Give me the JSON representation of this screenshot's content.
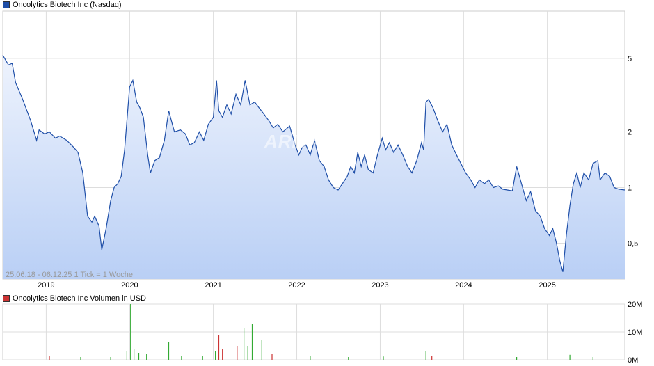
{
  "price_chart": {
    "legend": "Oncolytics Biotech Inc (Nasdaq)",
    "range_note": "25.06.18 - 06.12.25    1 Tick = 1 Woche",
    "watermark": "ARIVA.DE",
    "line_color": "#1f4fa8",
    "fill_top_color": "#eef3fd",
    "fill_bottom_color": "#b9cff5",
    "legend_color": "#1f4fa8"
  },
  "volume_chart": {
    "legend": "Oncolytics Biotech Inc Volumen in USD",
    "legend_color": "#cc3333"
  },
  "chart_data": [
    {
      "type": "line",
      "title": "Oncolytics Biotech Inc (Nasdaq)",
      "y_scale": "log",
      "ylim": [
        0.32,
        9.0
      ],
      "xlim": [
        "2018-06-25",
        "2025-12-06"
      ],
      "x_tick_labels": [
        "2019",
        "2020",
        "2021",
        "2022",
        "2023",
        "2024",
        "2025"
      ],
      "y_tick_labels": [
        {
          "label": "5",
          "value": 5
        },
        {
          "label": "2",
          "value": 2
        },
        {
          "label": "1",
          "value": 1
        },
        {
          "label": "0,5",
          "value": 0.5
        }
      ],
      "grid": true,
      "series": [
        {
          "points": [
            [
              "2018-06-25",
              5.2
            ],
            [
              "2018-07-20",
              4.6
            ],
            [
              "2018-08-05",
              4.7
            ],
            [
              "2018-08-20",
              3.7
            ],
            [
              "2018-09-20",
              3.0
            ],
            [
              "2018-10-25",
              2.3
            ],
            [
              "2018-11-20",
              1.8
            ],
            [
              "2018-12-01",
              2.05
            ],
            [
              "2018-12-25",
              1.95
            ],
            [
              "2019-01-15",
              2.0
            ],
            [
              "2019-02-10",
              1.85
            ],
            [
              "2019-03-01",
              1.9
            ],
            [
              "2019-04-01",
              1.8
            ],
            [
              "2019-05-01",
              1.65
            ],
            [
              "2019-05-20",
              1.55
            ],
            [
              "2019-06-10",
              1.2
            ],
            [
              "2019-07-01",
              0.7
            ],
            [
              "2019-07-20",
              0.65
            ],
            [
              "2019-08-01",
              0.7
            ],
            [
              "2019-08-20",
              0.62
            ],
            [
              "2019-09-01",
              0.46
            ],
            [
              "2019-09-20",
              0.6
            ],
            [
              "2019-10-10",
              0.85
            ],
            [
              "2019-10-25",
              1.0
            ],
            [
              "2019-11-10",
              1.05
            ],
            [
              "2019-11-25",
              1.15
            ],
            [
              "2019-12-10",
              1.6
            ],
            [
              "2020-01-01",
              3.5
            ],
            [
              "2020-01-15",
              3.8
            ],
            [
              "2020-02-01",
              2.9
            ],
            [
              "2020-02-15",
              2.7
            ],
            [
              "2020-03-01",
              2.4
            ],
            [
              "2020-03-20",
              1.5
            ],
            [
              "2020-04-01",
              1.2
            ],
            [
              "2020-04-20",
              1.4
            ],
            [
              "2020-05-10",
              1.45
            ],
            [
              "2020-06-01",
              1.8
            ],
            [
              "2020-06-20",
              2.6
            ],
            [
              "2020-07-15",
              2.0
            ],
            [
              "2020-08-10",
              2.05
            ],
            [
              "2020-09-01",
              1.95
            ],
            [
              "2020-09-20",
              1.7
            ],
            [
              "2020-10-10",
              1.75
            ],
            [
              "2020-11-01",
              2.0
            ],
            [
              "2020-11-20",
              1.8
            ],
            [
              "2020-12-10",
              2.2
            ],
            [
              "2021-01-01",
              2.4
            ],
            [
              "2021-01-15",
              3.8
            ],
            [
              "2021-01-25",
              2.6
            ],
            [
              "2021-02-10",
              2.4
            ],
            [
              "2021-03-01",
              2.8
            ],
            [
              "2021-03-20",
              2.5
            ],
            [
              "2021-04-10",
              3.2
            ],
            [
              "2021-05-01",
              2.8
            ],
            [
              "2021-05-20",
              3.8
            ],
            [
              "2021-06-10",
              2.8
            ],
            [
              "2021-07-01",
              2.9
            ],
            [
              "2021-07-20",
              2.7
            ],
            [
              "2021-08-10",
              2.5
            ],
            [
              "2021-09-01",
              2.3
            ],
            [
              "2021-09-20",
              2.1
            ],
            [
              "2021-10-10",
              2.2
            ],
            [
              "2021-11-01",
              2.0
            ],
            [
              "2021-12-01",
              2.15
            ],
            [
              "2021-12-25",
              1.7
            ],
            [
              "2022-01-10",
              1.5
            ],
            [
              "2022-01-25",
              1.65
            ],
            [
              "2022-02-10",
              1.7
            ],
            [
              "2022-03-01",
              1.5
            ],
            [
              "2022-03-20",
              1.8
            ],
            [
              "2022-04-10",
              1.4
            ],
            [
              "2022-05-01",
              1.3
            ],
            [
              "2022-05-20",
              1.1
            ],
            [
              "2022-06-10",
              1.0
            ],
            [
              "2022-07-01",
              0.97
            ],
            [
              "2022-07-20",
              1.05
            ],
            [
              "2022-08-10",
              1.15
            ],
            [
              "2022-08-25",
              1.3
            ],
            [
              "2022-09-10",
              1.2
            ],
            [
              "2022-09-25",
              1.55
            ],
            [
              "2022-10-10",
              1.3
            ],
            [
              "2022-10-25",
              1.5
            ],
            [
              "2022-11-10",
              1.25
            ],
            [
              "2022-12-01",
              1.2
            ],
            [
              "2022-12-20",
              1.5
            ],
            [
              "2023-01-10",
              1.85
            ],
            [
              "2023-01-25",
              1.6
            ],
            [
              "2023-02-10",
              1.75
            ],
            [
              "2023-03-01",
              1.55
            ],
            [
              "2023-03-20",
              1.7
            ],
            [
              "2023-04-10",
              1.5
            ],
            [
              "2023-05-01",
              1.3
            ],
            [
              "2023-05-20",
              1.2
            ],
            [
              "2023-06-10",
              1.4
            ],
            [
              "2023-07-01",
              1.75
            ],
            [
              "2023-07-10",
              1.6
            ],
            [
              "2023-07-20",
              2.9
            ],
            [
              "2023-08-01",
              3.0
            ],
            [
              "2023-08-20",
              2.7
            ],
            [
              "2023-09-10",
              2.3
            ],
            [
              "2023-10-01",
              2.0
            ],
            [
              "2023-10-20",
              2.2
            ],
            [
              "2023-11-10",
              1.7
            ],
            [
              "2023-12-01",
              1.5
            ],
            [
              "2023-12-20",
              1.35
            ],
            [
              "2024-01-10",
              1.2
            ],
            [
              "2024-02-01",
              1.1
            ],
            [
              "2024-02-20",
              1.0
            ],
            [
              "2024-03-10",
              1.1
            ],
            [
              "2024-04-01",
              1.05
            ],
            [
              "2024-04-20",
              1.1
            ],
            [
              "2024-05-10",
              1.0
            ],
            [
              "2024-06-01",
              1.02
            ],
            [
              "2024-06-20",
              0.98
            ],
            [
              "2024-07-10",
              0.97
            ],
            [
              "2024-08-01",
              0.96
            ],
            [
              "2024-08-20",
              1.3
            ],
            [
              "2024-09-10",
              1.05
            ],
            [
              "2024-10-01",
              0.85
            ],
            [
              "2024-10-20",
              0.95
            ],
            [
              "2024-11-10",
              0.75
            ],
            [
              "2024-12-01",
              0.7
            ],
            [
              "2024-12-20",
              0.6
            ],
            [
              "2025-01-10",
              0.55
            ],
            [
              "2025-01-25",
              0.6
            ],
            [
              "2025-02-10",
              0.5
            ],
            [
              "2025-02-25",
              0.4
            ],
            [
              "2025-03-10",
              0.35
            ],
            [
              "2025-03-25",
              0.55
            ],
            [
              "2025-04-10",
              0.8
            ],
            [
              "2025-04-25",
              1.05
            ],
            [
              "2025-05-10",
              1.2
            ],
            [
              "2025-05-25",
              1.0
            ],
            [
              "2025-06-10",
              1.2
            ],
            [
              "2025-07-01",
              1.1
            ],
            [
              "2025-07-20",
              1.35
            ],
            [
              "2025-08-10",
              1.4
            ],
            [
              "2025-08-20",
              1.1
            ],
            [
              "2025-09-10",
              1.2
            ],
            [
              "2025-10-01",
              1.15
            ],
            [
              "2025-10-20",
              1.0
            ],
            [
              "2025-11-10",
              0.98
            ],
            [
              "2025-12-06",
              0.97
            ]
          ]
        }
      ]
    },
    {
      "type": "bar",
      "title": "Oncolytics Biotech Inc Volumen in USD",
      "ylim": [
        0,
        20000000
      ],
      "y_tick_labels": [
        {
          "label": "20M",
          "value": 20000000
        },
        {
          "label": "10M",
          "value": 10000000
        },
        {
          "label": "0M",
          "value": 0
        }
      ],
      "colors": {
        "up": "#33aa33",
        "down": "#cc3333"
      },
      "series": [
        {
          "points": [
            [
              "2019-01-15",
              1500000,
              "down"
            ],
            [
              "2019-06-01",
              1000000,
              "up"
            ],
            [
              "2019-10-10",
              1000000,
              "up"
            ],
            [
              "2019-12-20",
              3000000,
              "up"
            ],
            [
              "2020-01-05",
              20000000,
              "up"
            ],
            [
              "2020-01-20",
              4000000,
              "up"
            ],
            [
              "2020-02-10",
              2500000,
              "up"
            ],
            [
              "2020-03-15",
              2000000,
              "up"
            ],
            [
              "2020-06-20",
              6500000,
              "up"
            ],
            [
              "2020-08-15",
              1500000,
              "up"
            ],
            [
              "2020-11-15",
              1500000,
              "up"
            ],
            [
              "2021-01-10",
              3000000,
              "up"
            ],
            [
              "2021-01-25",
              9000000,
              "down"
            ],
            [
              "2021-02-10",
              4000000,
              "down"
            ],
            [
              "2021-04-15",
              5000000,
              "down"
            ],
            [
              "2021-05-15",
              11500000,
              "up"
            ],
            [
              "2021-06-01",
              5000000,
              "up"
            ],
            [
              "2021-06-20",
              13000000,
              "up"
            ],
            [
              "2021-08-01",
              7000000,
              "up"
            ],
            [
              "2021-09-15",
              2000000,
              "down"
            ],
            [
              "2022-03-01",
              1500000,
              "up"
            ],
            [
              "2022-08-15",
              1000000,
              "up"
            ],
            [
              "2023-01-15",
              1200000,
              "up"
            ],
            [
              "2023-07-20",
              3000000,
              "up"
            ],
            [
              "2023-08-15",
              1500000,
              "down"
            ],
            [
              "2024-08-20",
              1000000,
              "up"
            ],
            [
              "2025-04-10",
              1800000,
              "up"
            ],
            [
              "2025-07-20",
              1000000,
              "up"
            ]
          ]
        }
      ]
    }
  ]
}
